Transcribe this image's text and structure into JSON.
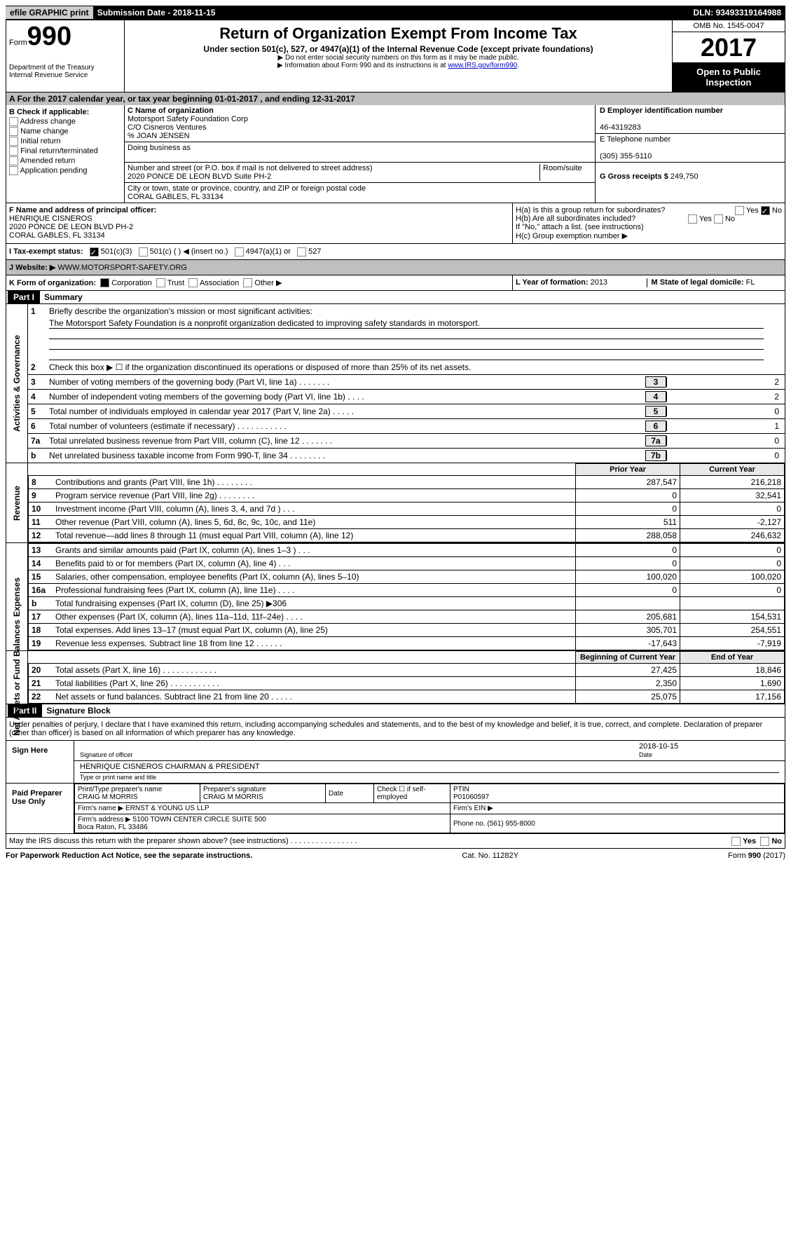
{
  "topbar": {
    "efile": "efile GRAPHIC print",
    "sub_label": "Submission Date -",
    "sub_date": "2018-11-15",
    "dln_label": "DLN:",
    "dln": "93493319164988"
  },
  "header": {
    "form_label": "Form",
    "form_num": "990",
    "dept": "Department of the Treasury\nInternal Revenue Service",
    "title": "Return of Organization Exempt From Income Tax",
    "subtitle": "Under section 501(c), 527, or 4947(a)(1) of the Internal Revenue Code (except private foundations)",
    "note1": "▶ Do not enter social security numbers on this form as it may be made public.",
    "note2_pre": "▶ Information about Form 990 and its instructions is at ",
    "note2_link": "www.IRS.gov/form990",
    "omb": "OMB No. 1545-0047",
    "year": "2017",
    "open": "Open to Public Inspection"
  },
  "rowA": "A  For the 2017 calendar year, or tax year beginning 01-01-2017   , and ending 12-31-2017",
  "colB": {
    "title": "B Check if applicable:",
    "items": [
      "Address change",
      "Name change",
      "Initial return",
      "Final return/terminated",
      "Amended return",
      "Application pending"
    ]
  },
  "colC": {
    "name_label": "C Name of organization",
    "name": "Motorsport Safety Foundation Corp\nC/O Cisneros Ventures\n% JOAN JENSEN",
    "dba": "Doing business as",
    "addr_label": "Number and street (or P.O. box if mail is not delivered to street address)",
    "addr": "2020 PONCE DE LEON BLVD Suite PH-2",
    "room_label": "Room/suite",
    "city_label": "City or town, state or province, country, and ZIP or foreign postal code",
    "city": "CORAL GABLES, FL  33134"
  },
  "colD": {
    "ein_label": "D Employer identification number",
    "ein": "46-4319283",
    "tel_label": "E Telephone number",
    "tel": "(305) 355-5110",
    "gross_label": "G Gross receipts $",
    "gross": "249,750"
  },
  "rowF": {
    "label": "F Name and address of principal officer:",
    "name": "HENRIQUE CISNEROS",
    "addr": "2020 PONCE DE LEON BLVD PH-2\nCORAL GABLES, FL  33134"
  },
  "rowH": {
    "a": "H(a)  Is this a group return for subordinates?",
    "b": "H(b)  Are all subordinates included?",
    "note": "If \"No,\" attach a list. (see instructions)",
    "c": "H(c)  Group exemption number ▶"
  },
  "rowI": {
    "label": "I  Tax-exempt status:",
    "opts": [
      "501(c)(3)",
      "501(c) (   ) ◀ (insert no.)",
      "4947(a)(1) or",
      "527"
    ]
  },
  "rowJ": {
    "label": "J  Website: ▶",
    "url": "WWW.MOTORSPORT-SAFETY.ORG"
  },
  "rowK": {
    "label": "K Form of organization:",
    "opts": [
      "Corporation",
      "Trust",
      "Association",
      "Other ▶"
    ],
    "L_label": "L Year of formation:",
    "L": "2013",
    "M_label": "M State of legal domicile:",
    "M": "FL"
  },
  "partI": {
    "title": "Part I",
    "name": "Summary",
    "line1": "Briefly describe the organization's mission or most significant activities:",
    "mission": "The Motorsport Safety Foundation is a nonprofit organization dedicated to improving safety standards in motorsport.",
    "line2": "Check this box ▶ ☐  if the organization discontinued its operations or disposed of more than 25% of its net assets."
  },
  "gov_lines": [
    {
      "n": "3",
      "t": "Number of voting members of the governing body (Part VI, line 1a)  .   .   .   .   .   .   .",
      "c": "3",
      "v": "2"
    },
    {
      "n": "4",
      "t": "Number of independent voting members of the governing body (Part VI, line 1b)   .   .   .   .",
      "c": "4",
      "v": "2"
    },
    {
      "n": "5",
      "t": "Total number of individuals employed in calendar year 2017 (Part V, line 2a)   .   .   .   .   .",
      "c": "5",
      "v": "0"
    },
    {
      "n": "6",
      "t": "Total number of volunteers (estimate if necessary)  .   .   .   .   .   .   .   .   .   .   .",
      "c": "6",
      "v": "1"
    },
    {
      "n": "7a",
      "t": "Total unrelated business revenue from Part VIII, column (C), line 12  .   .   .   .   .   .   .",
      "c": "7a",
      "v": "0"
    },
    {
      "n": "b",
      "t": "Net unrelated business taxable income from Form 990-T, line 34  .   .   .   .   .   .   .   .",
      "c": "7b",
      "v": "0"
    }
  ],
  "rev_header": {
    "prior": "Prior Year",
    "current": "Current Year"
  },
  "rev_lines": [
    {
      "n": "8",
      "t": "Contributions and grants (Part VIII, line 1h)   .   .   .   .   .   .   .   .",
      "p": "287,547",
      "c": "216,218"
    },
    {
      "n": "9",
      "t": "Program service revenue (Part VIII, line 2g)   .   .   .   .   .   .   .   .",
      "p": "0",
      "c": "32,541"
    },
    {
      "n": "10",
      "t": "Investment income (Part VIII, column (A), lines 3, 4, and 7d )   .   .   .",
      "p": "0",
      "c": "0"
    },
    {
      "n": "11",
      "t": "Other revenue (Part VIII, column (A), lines 5, 6d, 8c, 9c, 10c, and 11e)",
      "p": "511",
      "c": "-2,127"
    },
    {
      "n": "12",
      "t": "Total revenue—add lines 8 through 11 (must equal Part VIII, column (A), line 12)",
      "p": "288,058",
      "c": "246,632"
    }
  ],
  "exp_lines": [
    {
      "n": "13",
      "t": "Grants and similar amounts paid (Part IX, column (A), lines 1–3 )   .   .   .",
      "p": "0",
      "c": "0"
    },
    {
      "n": "14",
      "t": "Benefits paid to or for members (Part IX, column (A), line 4)   .   .   .",
      "p": "0",
      "c": "0"
    },
    {
      "n": "15",
      "t": "Salaries, other compensation, employee benefits (Part IX, column (A), lines 5–10)",
      "p": "100,020",
      "c": "100,020"
    },
    {
      "n": "16a",
      "t": "Professional fundraising fees (Part IX, column (A), line 11e)   .   .   .   .",
      "p": "0",
      "c": "0"
    },
    {
      "n": "b",
      "t": "Total fundraising expenses (Part IX, column (D), line 25) ▶306",
      "p": "",
      "c": "",
      "gray": true
    },
    {
      "n": "17",
      "t": "Other expenses (Part IX, column (A), lines 11a–11d, 11f–24e)   .   .   .   .",
      "p": "205,681",
      "c": "154,531"
    },
    {
      "n": "18",
      "t": "Total expenses. Add lines 13–17 (must equal Part IX, column (A), line 25)",
      "p": "305,701",
      "c": "254,551"
    },
    {
      "n": "19",
      "t": "Revenue less expenses. Subtract line 18 from line 12  .   .   .   .   .   .",
      "p": "-17,643",
      "c": "-7,919"
    }
  ],
  "na_header": {
    "begin": "Beginning of Current Year",
    "end": "End of Year"
  },
  "na_lines": [
    {
      "n": "20",
      "t": "Total assets (Part X, line 16)   .   .   .   .   .   .   .   .   .   .   .   .",
      "p": "27,425",
      "c": "18,846"
    },
    {
      "n": "21",
      "t": "Total liabilities (Part X, line 26)   .   .   .   .   .   .   .   .   .   .   .",
      "p": "2,350",
      "c": "1,690"
    },
    {
      "n": "22",
      "t": "Net assets or fund balances. Subtract line 21 from line 20 .   .   .   .   .",
      "p": "25,075",
      "c": "17,156"
    }
  ],
  "sides": {
    "gov": "Activities & Governance",
    "rev": "Revenue",
    "exp": "Expenses",
    "na": "Net Assets or Fund Balances"
  },
  "partII": {
    "title": "Part II",
    "name": "Signature Block",
    "declare": "Under penalties of perjury, I declare that I have examined this return, including accompanying schedules and statements, and to the best of my knowledge and belief, it is true, correct, and complete. Declaration of preparer (other than officer) is based on all information of which preparer has any knowledge.",
    "sign_here": "Sign Here",
    "sig_label": "Signature of officer",
    "date_label": "Date",
    "name_label": "Type or print name and title",
    "officer_name": "HENRIQUE CISNEROS CHAIRMAN & PRESIDENT",
    "date": "2018-10-15",
    "paid": "Paid Preparer Use Only",
    "prep_name_label": "Print/Type preparer's name",
    "prep_name": "CRAIG M MORRIS",
    "prep_sig_label": "Preparer's signature",
    "prep_sig": "CRAIG M MORRIS",
    "check_self": "Check ☐ if self-employed",
    "ptin_label": "PTIN",
    "ptin": "P01060597",
    "firm_name_label": "Firm's name   ▶",
    "firm_name": "ERNST & YOUNG US LLP",
    "firm_ein_label": "Firm's EIN ▶",
    "firm_addr_label": "Firm's address ▶",
    "firm_addr": "5100 TOWN CENTER CIRCLE SUITE 500\nBoca Raton, FL  33486",
    "phone_label": "Phone no.",
    "phone": "(561) 955-8000",
    "irs_q": "May the IRS discuss this return with the preparer shown above? (see instructions)   .   .   .   .   .   .   .   .   .   .   .   .   .   .   .   .",
    "yes": "Yes",
    "no": "No"
  },
  "footer": {
    "pra": "For Paperwork Reduction Act Notice, see the separate instructions.",
    "cat": "Cat. No. 11282Y",
    "form": "Form 990 (2017)"
  }
}
